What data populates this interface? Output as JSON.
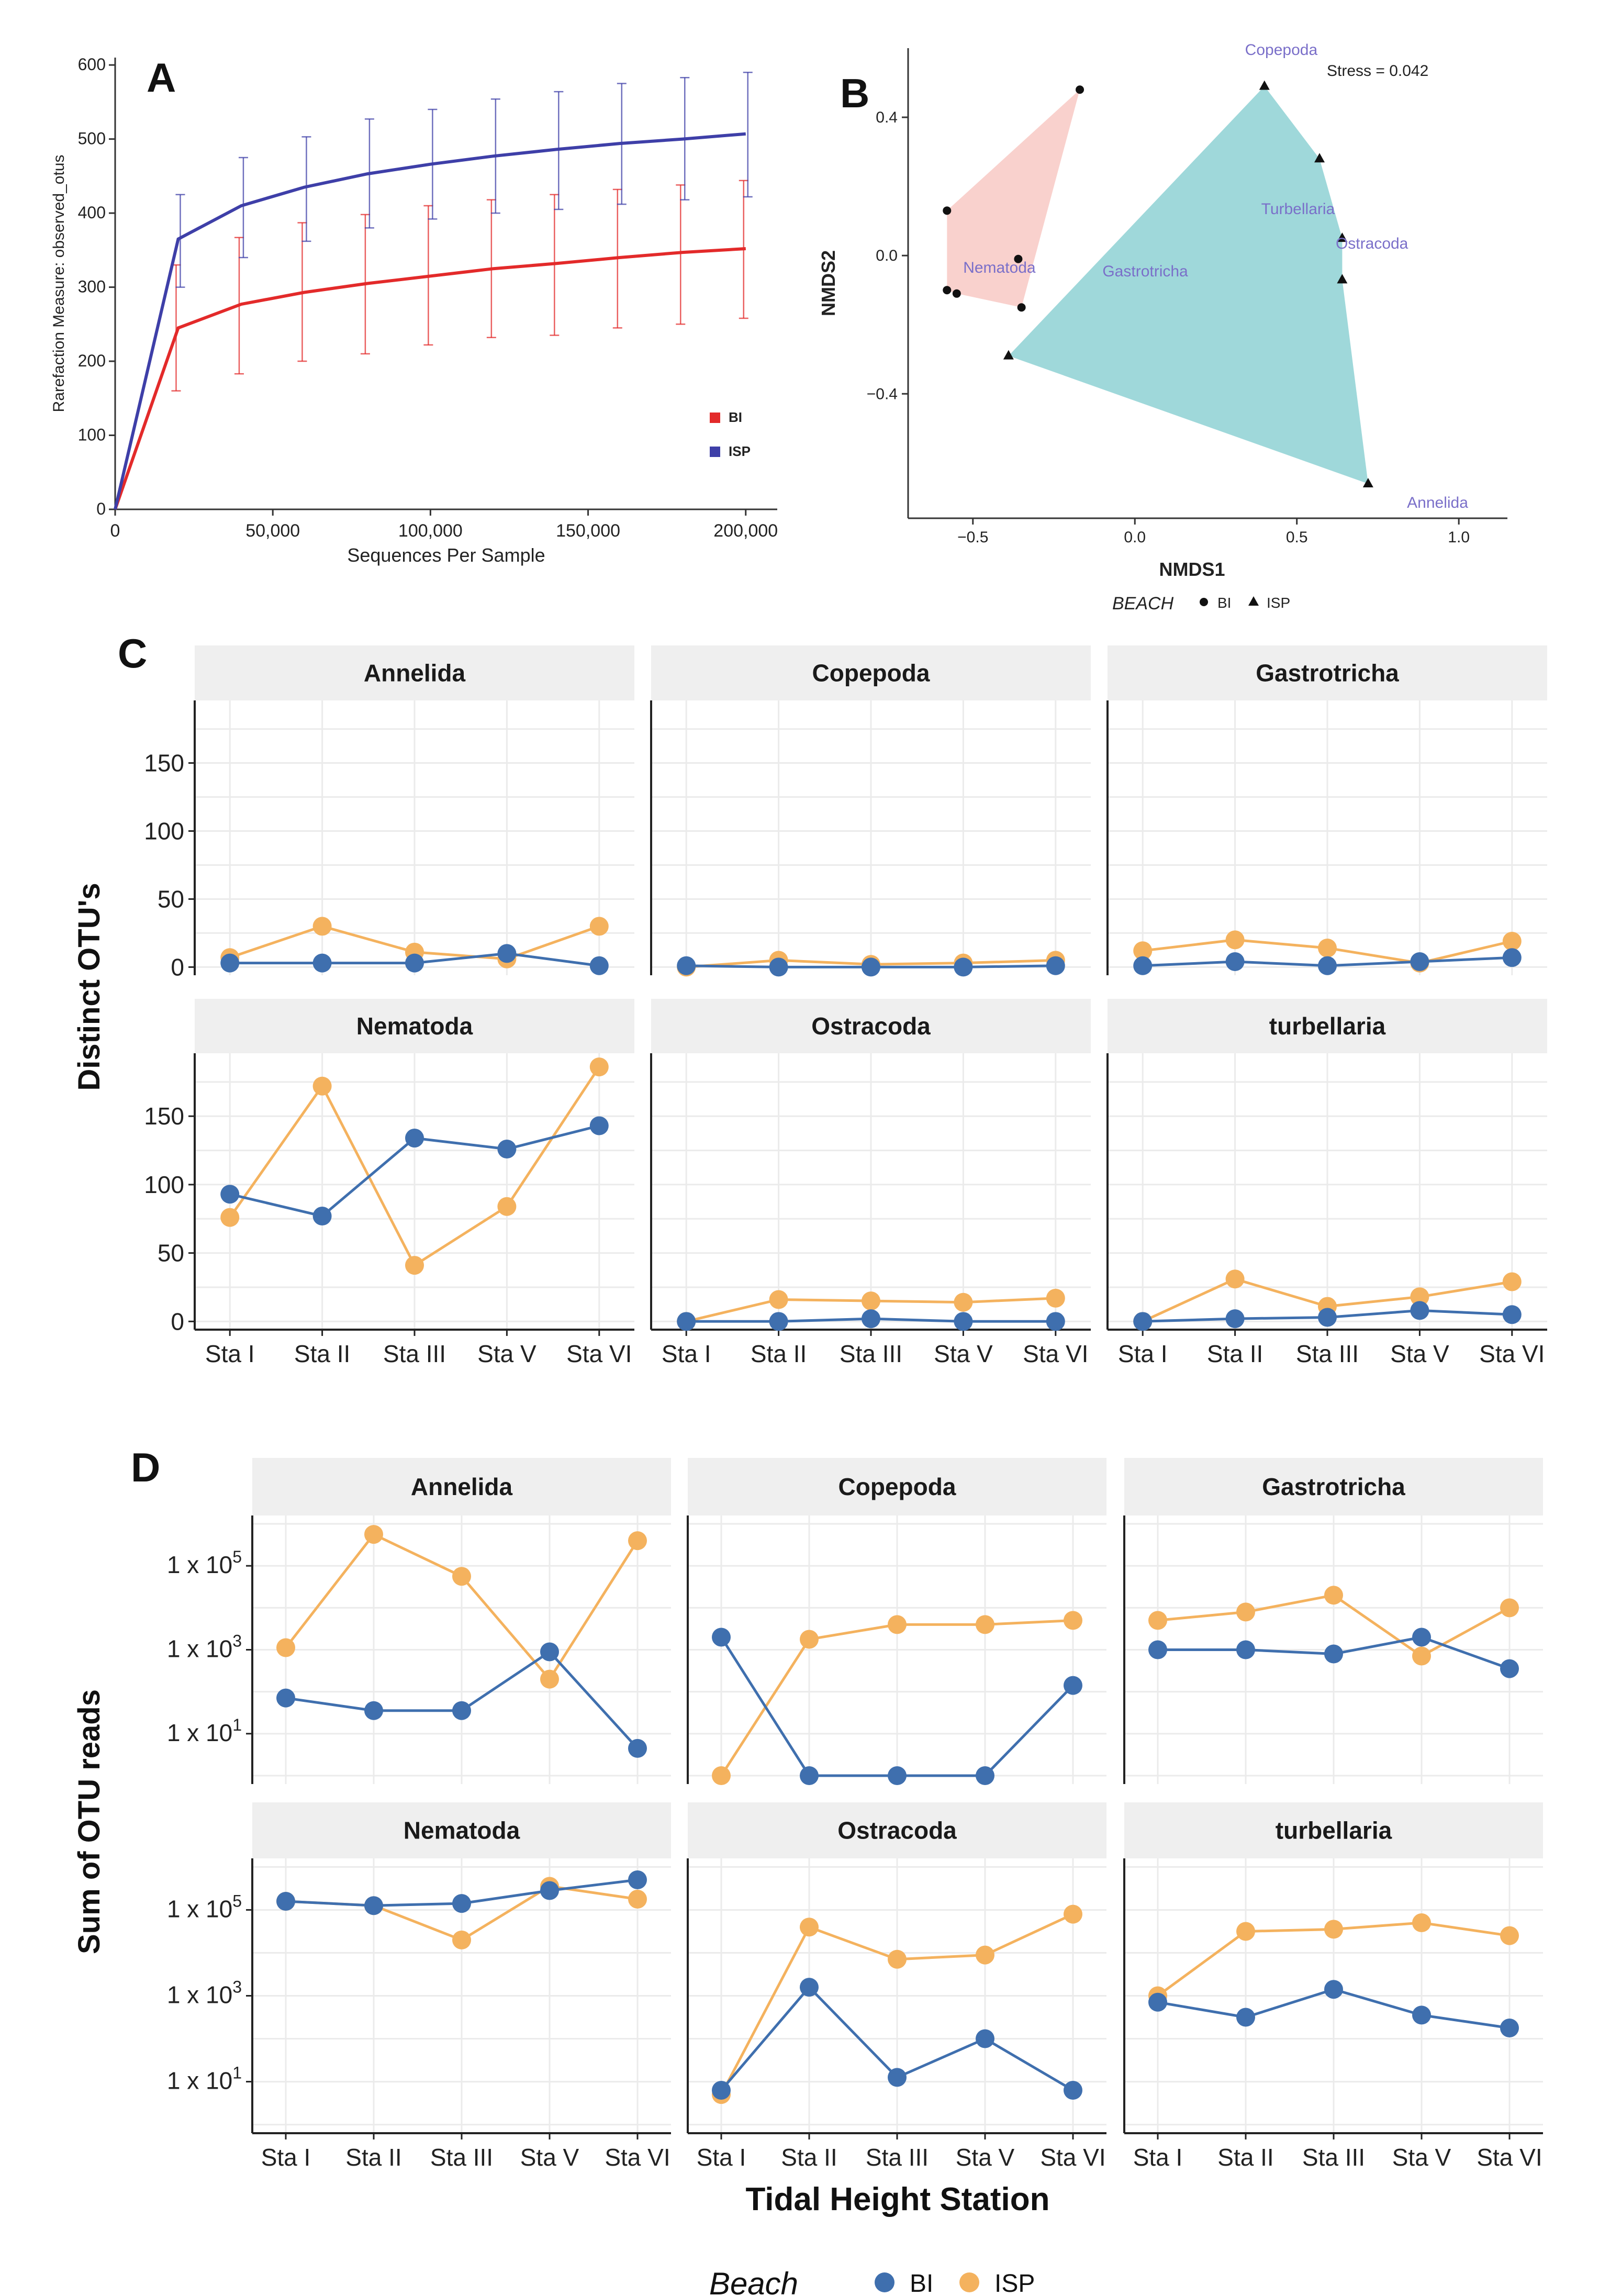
{
  "colors": {
    "bi": "#3F6FAE",
    "isp": "#F4B25E",
    "rare_bi": "#E32A2A",
    "rare_isp": "#3E3FA8",
    "hull_bi": "#F7C5C0",
    "hull_isp": "#8ED1D3",
    "strip": "#EFEFEF",
    "grid": "#EBEBEB",
    "label": "#7A6FC9"
  },
  "legend": {
    "beach_title": "Beach",
    "nmds_title": "BEACH",
    "bi": "BI",
    "isp": "ISP"
  },
  "chart_data": [
    {
      "panel": "A",
      "type": "line",
      "title": "",
      "xlabel": "Sequences Per Sample",
      "ylabel": "Rarefaction Measure: observed_otus",
      "xlim": [
        0,
        210000
      ],
      "ylim": [
        0,
        610
      ],
      "xticks": [
        0,
        50000,
        100000,
        150000,
        200000
      ],
      "xtick_labels": [
        "0",
        "50,000",
        "100,000",
        "150,000",
        "200,000"
      ],
      "yticks": [
        0,
        100,
        200,
        300,
        400,
        500,
        600
      ],
      "legend": [
        "BI",
        "ISP"
      ],
      "x": [
        0,
        20000,
        40000,
        60000,
        80000,
        100000,
        120000,
        140000,
        160000,
        180000,
        200000
      ],
      "series": [
        {
          "name": "BI",
          "values": [
            0,
            245,
            277,
            293,
            305,
            315,
            325,
            332,
            340,
            347,
            352
          ],
          "err_low": [
            0,
            160,
            183,
            200,
            210,
            222,
            232,
            235,
            245,
            250,
            258
          ],
          "err_high": [
            0,
            330,
            367,
            387,
            398,
            410,
            418,
            425,
            432,
            438,
            444
          ]
        },
        {
          "name": "ISP",
          "values": [
            0,
            365,
            410,
            435,
            453,
            466,
            477,
            486,
            494,
            500,
            507
          ],
          "err_low": [
            0,
            300,
            340,
            362,
            380,
            392,
            400,
            405,
            412,
            418,
            422
          ],
          "err_high": [
            0,
            425,
            475,
            503,
            527,
            540,
            554,
            564,
            575,
            583,
            590
          ]
        }
      ]
    },
    {
      "panel": "B",
      "type": "scatter",
      "title": "",
      "xlabel": "NMDS1",
      "ylabel": "NMDS2",
      "annotation": "Stress =  0.042",
      "xlim": [
        -0.7,
        1.15
      ],
      "ylim": [
        -0.76,
        0.6
      ],
      "xticks": [
        -0.5,
        0.0,
        0.5,
        1.0
      ],
      "xtick_labels": [
        "−0.5",
        "0.0",
        "0.5",
        "1.0"
      ],
      "yticks": [
        -0.4,
        0.0,
        0.4
      ],
      "ytick_labels": [
        "−0.4",
        "0.0",
        "0.4"
      ],
      "points_bi": [
        [
          -0.17,
          0.48
        ],
        [
          -0.58,
          0.13
        ],
        [
          -0.36,
          -0.01
        ],
        [
          -0.58,
          -0.1
        ],
        [
          -0.55,
          -0.11
        ],
        [
          -0.35,
          -0.15
        ]
      ],
      "points_isp": [
        [
          0.4,
          0.49
        ],
        [
          0.57,
          0.28
        ],
        [
          0.64,
          0.05
        ],
        [
          0.64,
          -0.07
        ],
        [
          -0.39,
          -0.29
        ],
        [
          0.72,
          -0.66
        ]
      ],
      "hull_bi": [
        [
          -0.17,
          0.48
        ],
        [
          -0.58,
          0.13
        ],
        [
          -0.58,
          -0.1
        ],
        [
          -0.55,
          -0.11
        ],
        [
          -0.35,
          -0.15
        ]
      ],
      "hull_isp": [
        [
          0.4,
          0.49
        ],
        [
          0.57,
          0.28
        ],
        [
          0.64,
          0.05
        ],
        [
          0.64,
          -0.07
        ],
        [
          0.72,
          -0.66
        ],
        [
          -0.39,
          -0.29
        ]
      ],
      "taxa": [
        {
          "name": "Copepoda",
          "x": 0.34,
          "y": 0.58
        },
        {
          "name": "Turbellaria",
          "x": 0.39,
          "y": 0.12
        },
        {
          "name": "Ostracoda",
          "x": 0.62,
          "y": 0.02
        },
        {
          "name": "Nematoda",
          "x": -0.53,
          "y": -0.05
        },
        {
          "name": "Gastrotricha",
          "x": -0.1,
          "y": -0.06
        },
        {
          "name": "Annelida",
          "x": 0.84,
          "y": -0.73
        }
      ]
    },
    {
      "panel": "C",
      "type": "line",
      "ylabel": "Distinct OTU's",
      "xlabel": "",
      "categories": [
        "Sta I",
        "Sta II",
        "Sta III",
        "Sta V",
        "Sta VI"
      ],
      "ylim": [
        -6,
        196
      ],
      "yticks": [
        0,
        50,
        100,
        150
      ],
      "facets": [
        {
          "title": "Annelida",
          "bi": [
            3,
            3,
            3,
            10,
            1
          ],
          "isp": [
            7,
            30,
            11,
            6,
            30
          ]
        },
        {
          "title": "Copepoda",
          "bi": [
            1,
            0,
            0,
            0,
            1
          ],
          "isp": [
            0,
            5,
            2,
            3,
            5
          ]
        },
        {
          "title": "Gastrotricha",
          "bi": [
            1,
            4,
            1,
            4,
            7
          ],
          "isp": [
            12,
            20,
            14,
            3,
            19
          ]
        },
        {
          "title": "Nematoda",
          "bi": [
            93,
            77,
            134,
            126,
            143
          ],
          "isp": [
            76,
            172,
            41,
            84,
            186
          ]
        },
        {
          "title": "Ostracoda",
          "bi": [
            0,
            0,
            2,
            0,
            0
          ],
          "isp": [
            0,
            16,
            15,
            14,
            17
          ]
        },
        {
          "title": "turbellaria",
          "bi": [
            0,
            2,
            3,
            8,
            5
          ],
          "isp": [
            0,
            31,
            11,
            18,
            29
          ]
        }
      ]
    },
    {
      "panel": "D",
      "type": "line",
      "scale": "log10",
      "ylabel": "Sum of OTU reads",
      "xlabel": "Tidal Height Station",
      "categories": [
        "Sta I",
        "Sta II",
        "Sta III",
        "Sta V",
        "Sta VI"
      ],
      "ylim_log10": [
        -0.2,
        6.2
      ],
      "yticks_log10": [
        1,
        3,
        5
      ],
      "ytick_base": "1 x 10",
      "ytick_exps": [
        "1",
        "3",
        "5"
      ],
      "facets": [
        {
          "title": "Annelida",
          "bi_log10": [
            1.85,
            1.55,
            1.55,
            2.95,
            0.65
          ],
          "isp_log10": [
            3.05,
            5.75,
            4.75,
            2.3,
            5.6
          ]
        },
        {
          "title": "Copepoda",
          "bi_log10": [
            3.3,
            0,
            0,
            0,
            2.15
          ],
          "isp_log10": [
            0,
            3.25,
            3.6,
            3.6,
            3.7
          ]
        },
        {
          "title": "Gastrotricha",
          "bi_log10": [
            3,
            3,
            2.9,
            3.3,
            2.55
          ],
          "isp_log10": [
            3.7,
            3.9,
            4.3,
            2.85,
            4
          ]
        },
        {
          "title": "Nematoda",
          "bi_log10": [
            5.2,
            5.1,
            5.15,
            5.45,
            5.7
          ],
          "isp_log10": [
            5.2,
            5.1,
            4.3,
            5.55,
            5.25
          ]
        },
        {
          "title": "Ostracoda",
          "bi_log10": [
            0.8,
            3.2,
            1.1,
            2,
            0.8
          ],
          "isp_log10": [
            0.7,
            4.6,
            3.85,
            3.95,
            4.9
          ]
        },
        {
          "title": "turbellaria",
          "bi_log10": [
            2.85,
            2.5,
            3.15,
            2.55,
            2.25
          ],
          "isp_log10": [
            3,
            4.5,
            4.55,
            4.7,
            4.4
          ]
        }
      ]
    }
  ]
}
